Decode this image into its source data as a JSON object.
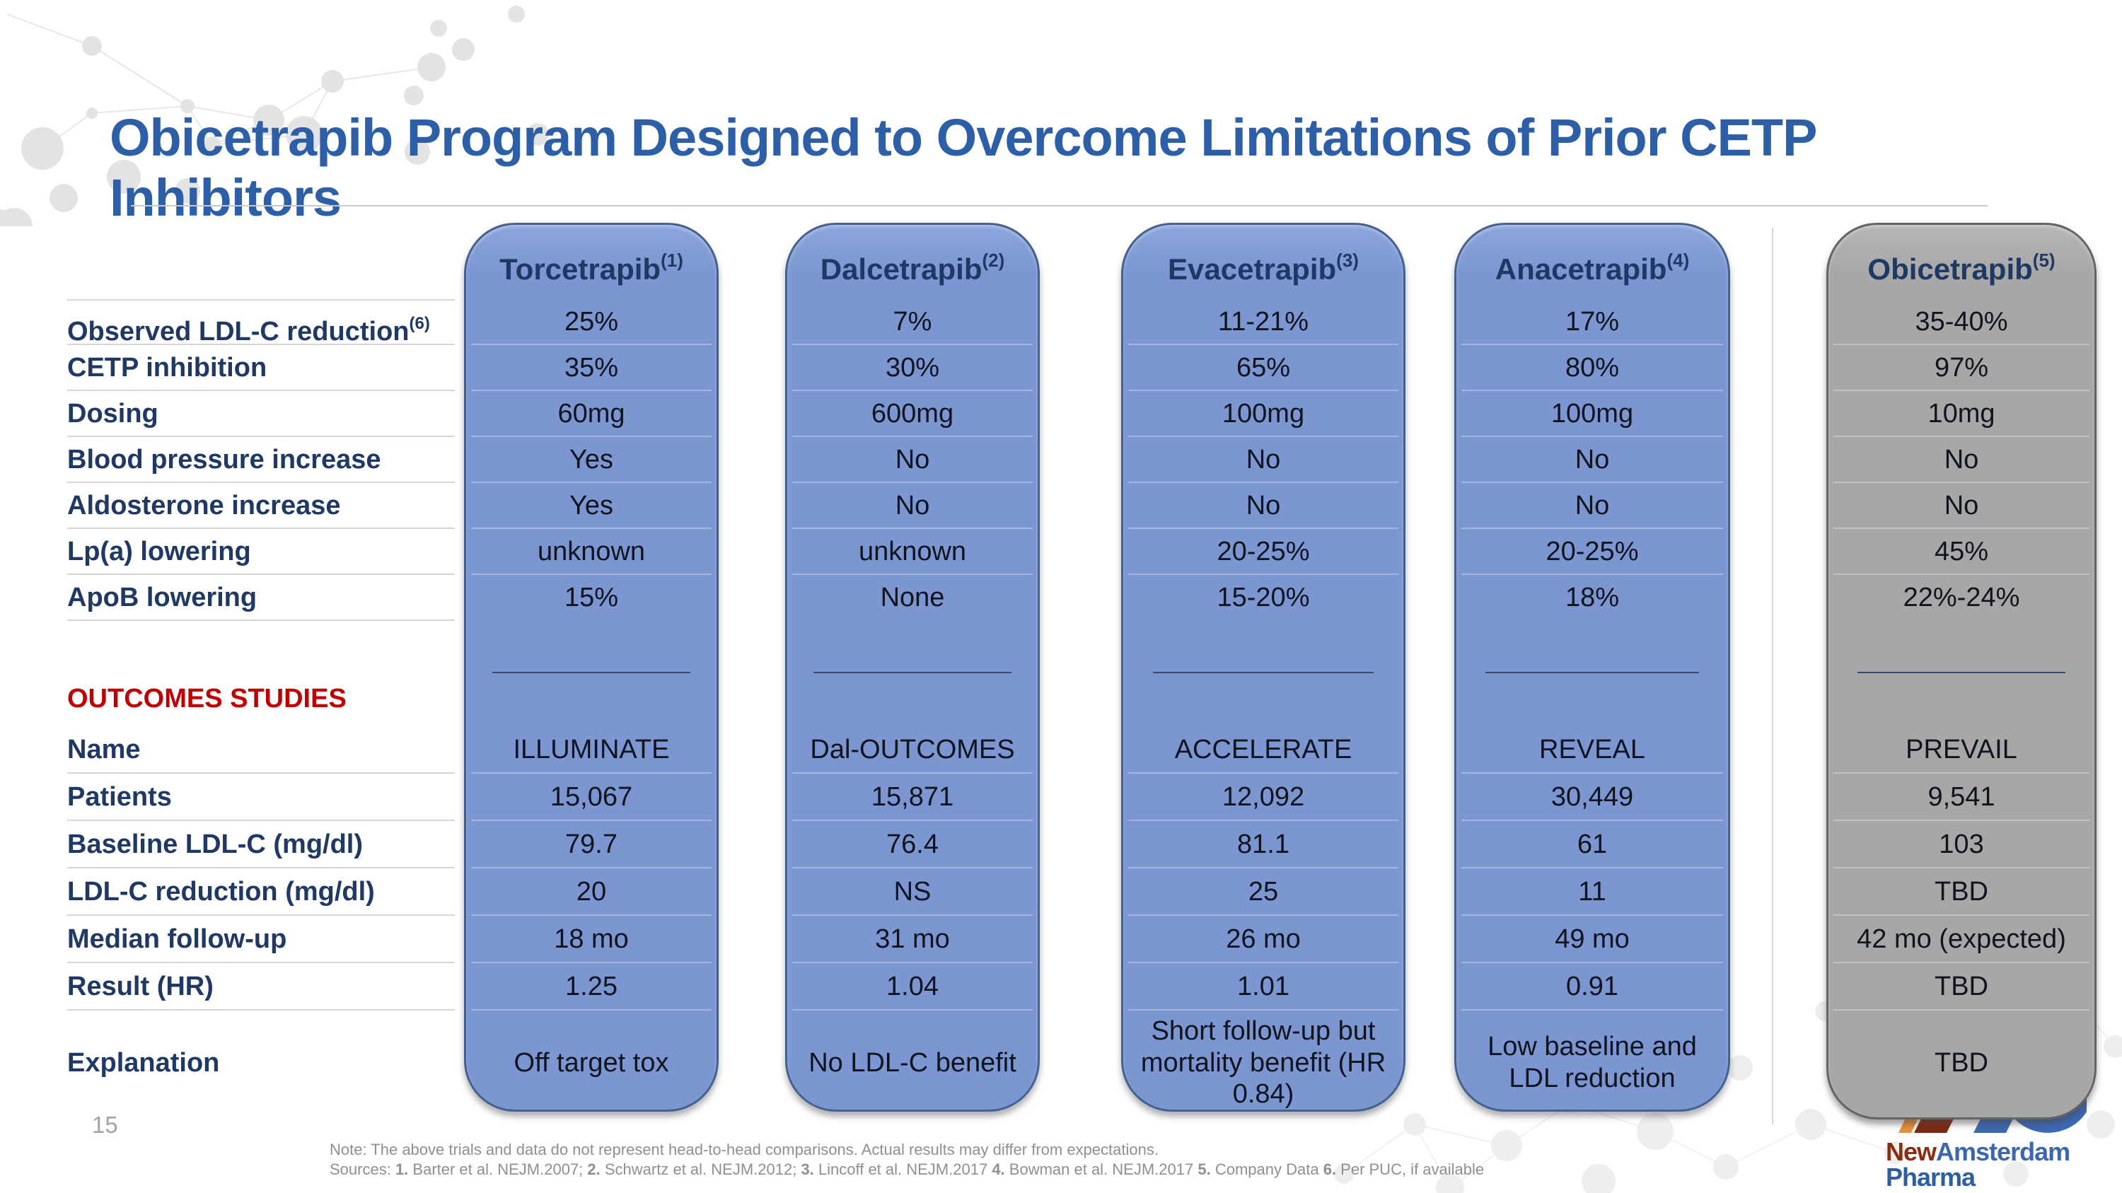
{
  "slide": {
    "title": "Obicetrapib Program Designed to Overcome Limitations of Prior CETP Inhibitors",
    "page_number": "15"
  },
  "colors": {
    "title_blue": "#2D5FA9",
    "pill_blue": "#7B96D1",
    "pill_gray": "#A9A9A9",
    "label_navy": "#1F3864",
    "outcomes_red": "#C00000",
    "logo_maroon": "#8A2D10",
    "logo_orange": "#E8913B",
    "logo_blue": "#3A67AE"
  },
  "columns": [
    {
      "name": "Torcetrapib",
      "sup": "(1)",
      "style": "blue"
    },
    {
      "name": "Dalcetrapib",
      "sup": "(2)",
      "style": "blue"
    },
    {
      "name": "Evacetrapib",
      "sup": "(3)",
      "style": "blue"
    },
    {
      "name": "Anacetrapib",
      "sup": "(4)",
      "style": "blue"
    },
    {
      "name": "Obicetrapib",
      "sup": "(5)",
      "style": "gray"
    }
  ],
  "top_rows": [
    {
      "label": "Observed LDL-C reduction",
      "sup": "(6)",
      "values": [
        "25%",
        "7%",
        "11-21%",
        "17%",
        "35-40%"
      ]
    },
    {
      "label": "CETP inhibition",
      "values": [
        "35%",
        "30%",
        "65%",
        "80%",
        "97%"
      ]
    },
    {
      "label": "Dosing",
      "values": [
        "60mg",
        "600mg",
        "100mg",
        "100mg",
        "10mg"
      ]
    },
    {
      "label": "Blood pressure increase",
      "values": [
        "Yes",
        "No",
        "No",
        "No",
        "No"
      ]
    },
    {
      "label": "Aldosterone increase",
      "values": [
        "Yes",
        "No",
        "No",
        "No",
        "No"
      ]
    },
    {
      "label": "Lp(a) lowering",
      "values": [
        "unknown",
        "unknown",
        "20-25%",
        "20-25%",
        "45%"
      ]
    },
    {
      "label": "ApoB lowering",
      "values": [
        "15%",
        "None",
        "15-20%",
        "18%",
        "22%-24%"
      ]
    }
  ],
  "sections": {
    "outcomes_label": "OUTCOMES STUDIES"
  },
  "outcome_rows": [
    {
      "label": "Name",
      "values": [
        "ILLUMINATE",
        "Dal-OUTCOMES",
        "ACCELERATE",
        "REVEAL",
        "PREVAIL"
      ]
    },
    {
      "label": "Patients",
      "values": [
        "15,067",
        "15,871",
        "12,092",
        "30,449",
        "9,541"
      ]
    },
    {
      "label": "Baseline LDL-C (mg/dl)",
      "values": [
        "79.7",
        "76.4",
        "81.1",
        "61",
        "103"
      ]
    },
    {
      "label": "LDL-C reduction (mg/dl)",
      "values": [
        "20",
        "NS",
        "25",
        "11",
        "TBD"
      ]
    },
    {
      "label": "Median follow-up",
      "values": [
        "18 mo",
        "31 mo",
        "26 mo",
        "49 mo",
        "42 mo (expected)"
      ]
    },
    {
      "label": "Result (HR)",
      "values": [
        "1.25",
        "1.04",
        "1.01",
        "0.91",
        "TBD"
      ]
    },
    {
      "label": "Explanation",
      "values": [
        "Off target tox",
        "No LDL-C benefit",
        "Short follow-up but mortality benefit (HR 0.84)",
        "Low baseline and LDL reduction",
        "TBD"
      ]
    }
  ],
  "footer": {
    "note": "Note: The above trials and data do not represent head-to-head comparisons. Actual results may differ from expectations.",
    "sources_segments": [
      {
        "text": "Sources: ",
        "bold": false
      },
      {
        "text": "1.",
        "bold": true
      },
      {
        "text": " Barter et al. NEJM.2007; ",
        "bold": false
      },
      {
        "text": "2.",
        "bold": true
      },
      {
        "text": " Schwartz et al. NEJM.2012; ",
        "bold": false
      },
      {
        "text": "3.",
        "bold": true
      },
      {
        "text": " Lincoff et al. NEJM.2017 ",
        "bold": false
      },
      {
        "text": "4.",
        "bold": true
      },
      {
        "text": " Bowman et al. NEJM.2017 ",
        "bold": false
      },
      {
        "text": "5.",
        "bold": true
      },
      {
        "text": " Company Data ",
        "bold": false
      },
      {
        "text": "6.",
        "bold": true
      },
      {
        "text": " Per PUC, if available",
        "bold": false
      }
    ]
  },
  "logo": {
    "part1": "New",
    "part2": "Amsterdam",
    "part3": "Pharma"
  }
}
